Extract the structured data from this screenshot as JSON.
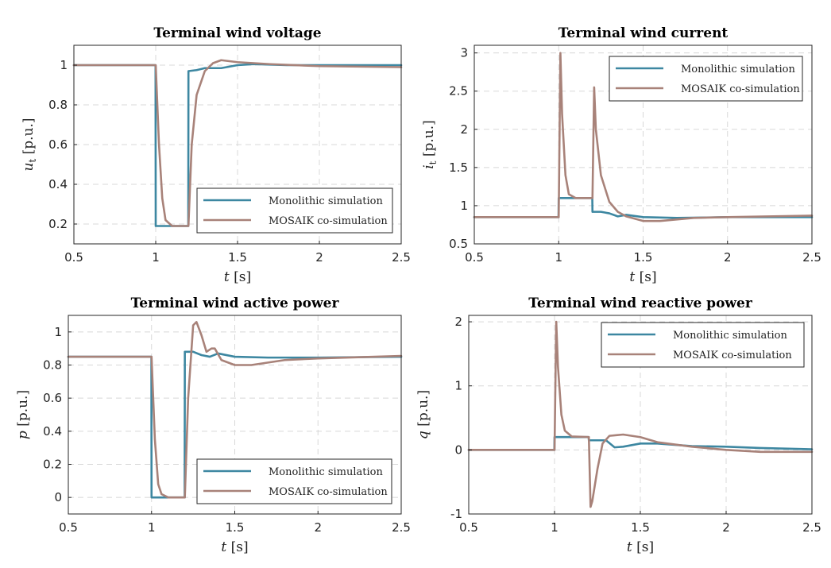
{
  "figure": {
    "legend_entries": [
      "Monolithic simulation",
      "MOSAIK co-simulation"
    ],
    "colors": {
      "monolithic": "#3d87a1",
      "mosaik": "#a88279"
    }
  },
  "chart_data": [
    {
      "type": "line",
      "title": "Terminal wind voltage",
      "xlabel_var": "t",
      "xlabel_unit": "[s]",
      "ylabel_var": "u",
      "ylabel_sub": "t",
      "ylabel_unit": "[p.u.]",
      "xlim": [
        0.5,
        2.5
      ],
      "ylim": [
        0.1,
        1.1
      ],
      "xticks": [
        0.5,
        1,
        1.5,
        2,
        2.5
      ],
      "xtick_labels": [
        "0.5",
        "1",
        "1.5",
        "2",
        "2.5"
      ],
      "yticks": [
        0.2,
        0.4,
        0.6,
        0.8,
        1
      ],
      "ytick_labels": [
        "0.2",
        "0.4",
        "0.6",
        "0.8",
        "1"
      ],
      "legend_position": "bottom-right",
      "grid": true,
      "series": [
        {
          "name": "Monolithic simulation",
          "x": [
            0.5,
            0.999,
            1.0,
            1.199,
            1.2,
            1.25,
            1.3,
            1.35,
            1.4,
            1.5,
            1.6,
            1.8,
            2.0,
            2.2,
            2.5
          ],
          "y": [
            1.0,
            1.0,
            0.19,
            0.19,
            0.97,
            0.975,
            0.985,
            0.985,
            0.985,
            1.0,
            1.005,
            1.0,
            1.0,
            1.0,
            1.0
          ]
        },
        {
          "name": "MOSAIK co-simulation",
          "x": [
            0.5,
            0.999,
            1.0,
            1.02,
            1.04,
            1.06,
            1.1,
            1.199,
            1.2,
            1.22,
            1.25,
            1.3,
            1.35,
            1.4,
            1.5,
            1.7,
            2.0,
            2.5
          ],
          "y": [
            1.0,
            1.0,
            1.0,
            0.6,
            0.33,
            0.22,
            0.19,
            0.19,
            0.19,
            0.6,
            0.85,
            0.97,
            1.01,
            1.025,
            1.015,
            1.005,
            0.995,
            0.99
          ]
        }
      ]
    },
    {
      "type": "line",
      "title": "Terminal wind current",
      "xlabel_var": "t",
      "xlabel_unit": "[s]",
      "ylabel_var": "i",
      "ylabel_sub": "t",
      "ylabel_unit": "[p.u.]",
      "xlim": [
        0.5,
        2.5
      ],
      "ylim": [
        0.5,
        3.1
      ],
      "xticks": [
        0.5,
        1,
        1.5,
        2,
        2.5
      ],
      "xtick_labels": [
        "0.5",
        "1",
        "1.5",
        "2",
        "2.5"
      ],
      "yticks": [
        0.5,
        1,
        1.5,
        2,
        2.5,
        3
      ],
      "ytick_labels": [
        "0.5",
        "1",
        "1.5",
        "2",
        "2.5",
        "3"
      ],
      "legend_position": "top-right",
      "grid": true,
      "series": [
        {
          "name": "Monolithic simulation",
          "x": [
            0.5,
            0.999,
            1.0,
            1.199,
            1.2,
            1.25,
            1.3,
            1.35,
            1.4,
            1.5,
            1.7,
            2.0,
            2.5
          ],
          "y": [
            0.85,
            0.85,
            1.1,
            1.1,
            0.92,
            0.92,
            0.9,
            0.86,
            0.88,
            0.85,
            0.84,
            0.85,
            0.85
          ]
        },
        {
          "name": "MOSAIK co-simulation",
          "x": [
            0.5,
            0.999,
            1.0,
            1.01,
            1.02,
            1.04,
            1.06,
            1.1,
            1.199,
            1.2,
            1.21,
            1.22,
            1.25,
            1.3,
            1.35,
            1.4,
            1.5,
            1.6,
            1.8,
            2.0,
            2.5
          ],
          "y": [
            0.85,
            0.85,
            0.85,
            3.0,
            2.2,
            1.4,
            1.15,
            1.1,
            1.1,
            1.1,
            2.55,
            2.0,
            1.4,
            1.05,
            0.92,
            0.86,
            0.8,
            0.8,
            0.84,
            0.85,
            0.87
          ]
        }
      ]
    },
    {
      "type": "line",
      "title": "Terminal wind active power",
      "xlabel_var": "t",
      "xlabel_unit": "[s]",
      "ylabel_var": "p",
      "ylabel_sub": "",
      "ylabel_unit": "[p.u.]",
      "xlim": [
        0.5,
        2.5
      ],
      "ylim": [
        -0.1,
        1.1
      ],
      "xticks": [
        0.5,
        1,
        1.5,
        2,
        2.5
      ],
      "xtick_labels": [
        "0.5",
        "1",
        "1.5",
        "2",
        "2.5"
      ],
      "yticks": [
        0,
        0.2,
        0.4,
        0.6,
        0.8,
        1
      ],
      "ytick_labels": [
        "0",
        "0.2",
        "0.4",
        "0.6",
        "0.8",
        "1"
      ],
      "legend_position": "bottom-right",
      "grid": true,
      "series": [
        {
          "name": "Monolithic simulation",
          "x": [
            0.5,
            0.999,
            1.0,
            1.199,
            1.2,
            1.25,
            1.3,
            1.35,
            1.4,
            1.5,
            1.7,
            2.0,
            2.5
          ],
          "y": [
            0.85,
            0.85,
            0.0,
            0.0,
            0.88,
            0.88,
            0.86,
            0.85,
            0.87,
            0.85,
            0.845,
            0.845,
            0.85
          ]
        },
        {
          "name": "MOSAIK co-simulation",
          "x": [
            0.5,
            0.999,
            1.0,
            1.02,
            1.04,
            1.06,
            1.1,
            1.199,
            1.2,
            1.22,
            1.25,
            1.27,
            1.3,
            1.33,
            1.36,
            1.38,
            1.42,
            1.5,
            1.6,
            1.8,
            2.0,
            2.5
          ],
          "y": [
            0.85,
            0.85,
            0.85,
            0.35,
            0.08,
            0.02,
            0.0,
            0.0,
            0.0,
            0.6,
            1.04,
            1.06,
            0.98,
            0.88,
            0.9,
            0.9,
            0.83,
            0.8,
            0.8,
            0.83,
            0.84,
            0.855
          ]
        }
      ]
    },
    {
      "type": "line",
      "title": "Terminal wind reactive power",
      "xlabel_var": "t",
      "xlabel_unit": "[s]",
      "ylabel_var": "q",
      "ylabel_sub": "",
      "ylabel_unit": "[p.u.]",
      "xlim": [
        0.5,
        2.5
      ],
      "ylim": [
        -1,
        2.1
      ],
      "xticks": [
        0.5,
        1,
        1.5,
        2,
        2.5
      ],
      "xtick_labels": [
        "0.5",
        "1",
        "1.5",
        "2",
        "2.5"
      ],
      "yticks": [
        -1,
        0,
        1,
        2
      ],
      "ytick_labels": [
        "-1",
        "0",
        "1",
        "2"
      ],
      "legend_position": "top-right",
      "grid": true,
      "series": [
        {
          "name": "Monolithic simulation",
          "x": [
            0.5,
            0.999,
            1.0,
            1.199,
            1.2,
            1.25,
            1.3,
            1.35,
            1.4,
            1.5,
            1.6,
            1.8,
            2.0,
            2.2,
            2.5
          ],
          "y": [
            0.0,
            0.0,
            0.2,
            0.2,
            0.15,
            0.15,
            0.15,
            0.04,
            0.05,
            0.1,
            0.1,
            0.06,
            0.05,
            0.03,
            0.01
          ]
        },
        {
          "name": "MOSAIK co-simulation",
          "x": [
            0.5,
            0.999,
            1.0,
            1.01,
            1.02,
            1.04,
            1.06,
            1.1,
            1.199,
            1.2,
            1.21,
            1.22,
            1.25,
            1.28,
            1.32,
            1.36,
            1.4,
            1.5,
            1.6,
            1.8,
            2.0,
            2.2,
            2.5
          ],
          "y": [
            0.0,
            0.0,
            0.0,
            2.0,
            1.3,
            0.55,
            0.3,
            0.21,
            0.2,
            0.2,
            -0.89,
            -0.8,
            -0.3,
            0.1,
            0.22,
            0.23,
            0.24,
            0.2,
            0.12,
            0.05,
            0.0,
            -0.03,
            -0.03
          ]
        }
      ]
    }
  ]
}
